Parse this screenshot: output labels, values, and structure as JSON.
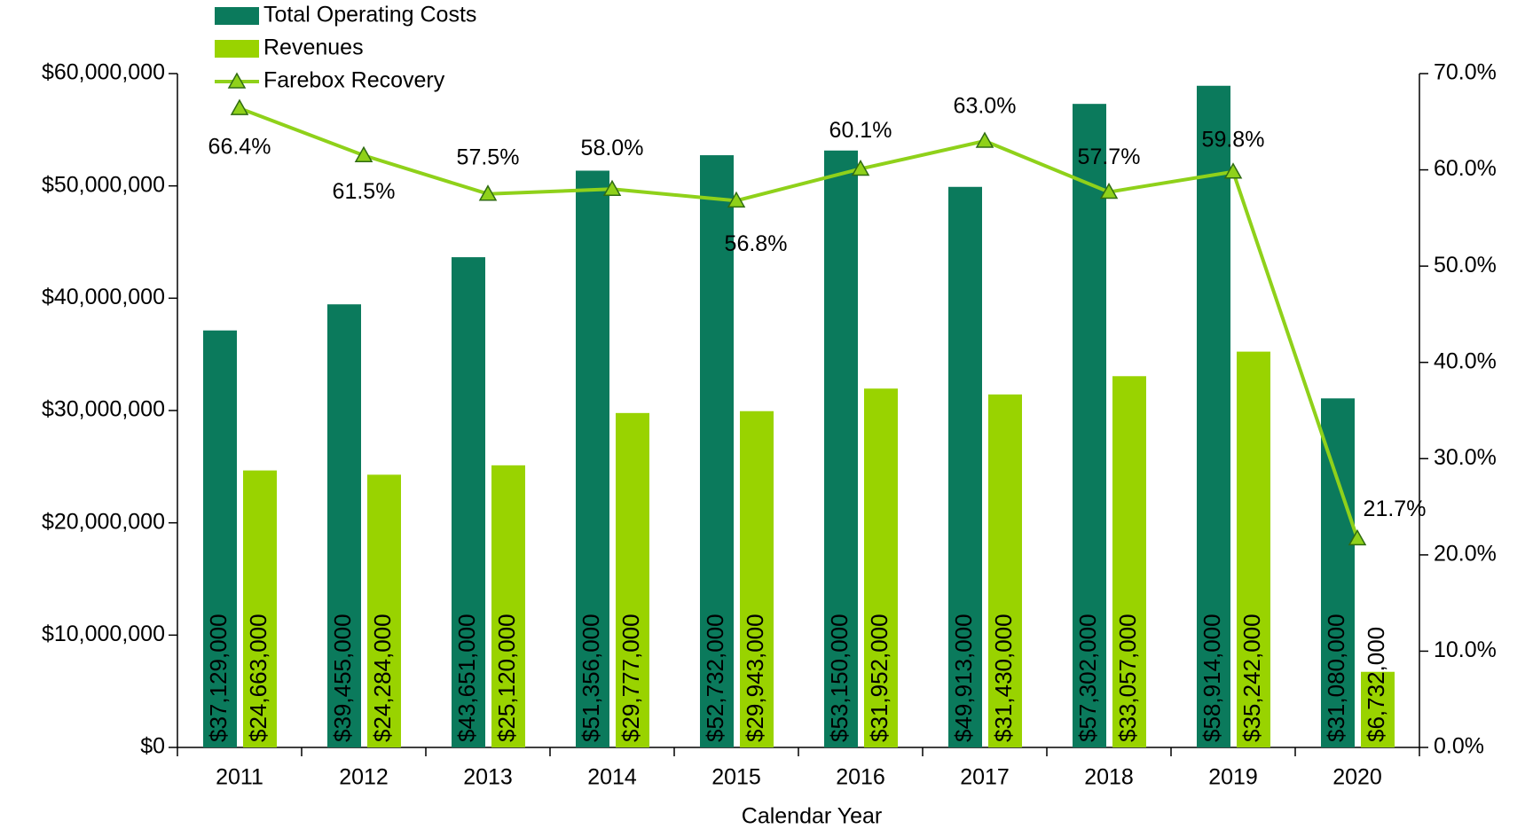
{
  "chart_data": {
    "type": "bar",
    "x_label": "Calendar Year",
    "categories": [
      "2011",
      "2012",
      "2013",
      "2014",
      "2015",
      "2016",
      "2017",
      "2018",
      "2019",
      "2020"
    ],
    "series": [
      {
        "name": "Total Operating Costs",
        "color": "#0b7a5c",
        "values": [
          37129000,
          39455000,
          43651000,
          51356000,
          52732000,
          53150000,
          49913000,
          57302000,
          58914000,
          31080000
        ],
        "value_labels": [
          "$37,129,000",
          "$39,455,000",
          "$43,651,000",
          "$51,356,000",
          "$52,732,000",
          "$53,150,000",
          "$49,913,000",
          "$57,302,000",
          "$58,914,000",
          "$31,080,000"
        ]
      },
      {
        "name": "Revenues",
        "color": "#99d300",
        "values": [
          24663000,
          24284000,
          25120000,
          29777000,
          29943000,
          31952000,
          31430000,
          33057000,
          35242000,
          6732000
        ],
        "value_labels": [
          "$24,663,000",
          "$24,284,000",
          "$25,120,000",
          "$29,777,000",
          "$29,943,000",
          "$31,952,000",
          "$31,430,000",
          "$33,057,000",
          "$35,242,000",
          "$6,732,000"
        ]
      },
      {
        "name": "Farebox Recovery",
        "type": "line",
        "axis": "y2",
        "color": "#8fd11a",
        "values": [
          66.4,
          61.5,
          57.5,
          58.0,
          56.8,
          60.1,
          63.0,
          57.7,
          59.8,
          21.7
        ],
        "value_labels": [
          "66.4%",
          "61.5%",
          "57.5%",
          "58.0%",
          "56.8%",
          "60.1%",
          "63.0%",
          "57.7%",
          "59.8%",
          "21.7%"
        ]
      }
    ],
    "ylim": [
      0,
      60000000
    ],
    "yticks": [
      {
        "value": 0,
        "label": "$0"
      },
      {
        "value": 10000000,
        "label": "$10,000,000"
      },
      {
        "value": 20000000,
        "label": "$20,000,000"
      },
      {
        "value": 30000000,
        "label": "$30,000,000"
      },
      {
        "value": 40000000,
        "label": "$40,000,000"
      },
      {
        "value": 50000000,
        "label": "$50,000,000"
      },
      {
        "value": 60000000,
        "label": "$60,000,000"
      }
    ],
    "y2lim": [
      0,
      70
    ],
    "y2ticks": [
      {
        "value": 0,
        "label": "0.0%"
      },
      {
        "value": 10,
        "label": "10.0%"
      },
      {
        "value": 20,
        "label": "20.0%"
      },
      {
        "value": 30,
        "label": "30.0%"
      },
      {
        "value": 40,
        "label": "40.0%"
      },
      {
        "value": 50,
        "label": "50.0%"
      },
      {
        "value": 60,
        "label": "60.0%"
      },
      {
        "value": 70,
        "label": "70.0%"
      }
    ],
    "legend": "top-left"
  }
}
